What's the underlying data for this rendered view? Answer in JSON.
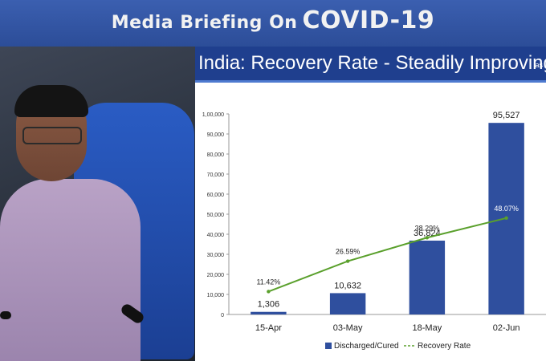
{
  "banner": {
    "title_part1": "Media Briefing On",
    "title_part2": "COVID-19"
  },
  "video": {
    "description_icon": "speaker-video-feed"
  },
  "slide": {
    "title": "India: Recovery Rate - Steadily Improving",
    "aside": "as"
  },
  "chart_data": {
    "type": "bar",
    "categories": [
      "15-Apr",
      "03-May",
      "18-May",
      "02-Jun"
    ],
    "series": [
      {
        "name": "Discharged/Cured",
        "values": [
          1306,
          10632,
          36824,
          95527
        ],
        "labels": [
          "1,306",
          "10,632",
          "36,824",
          "95,527"
        ],
        "color": "#2f4f9e"
      },
      {
        "name": "Recovery Rate",
        "type": "line",
        "values": [
          11.42,
          26.59,
          38.29,
          48.07
        ],
        "labels": [
          "11.42%",
          "26.59%",
          "38.29%",
          "48.07%"
        ],
        "color": "#5aa02c"
      }
    ],
    "y_ticks": [
      "0",
      "10,000",
      "20,000",
      "30,000",
      "40,000",
      "50,000",
      "60,000",
      "70,000",
      "80,000",
      "90,000",
      "1,00,000"
    ],
    "ylim": [
      0,
      100000
    ],
    "line_ylim": [
      0,
      100
    ],
    "legend_position": "bottom",
    "grid": false
  }
}
